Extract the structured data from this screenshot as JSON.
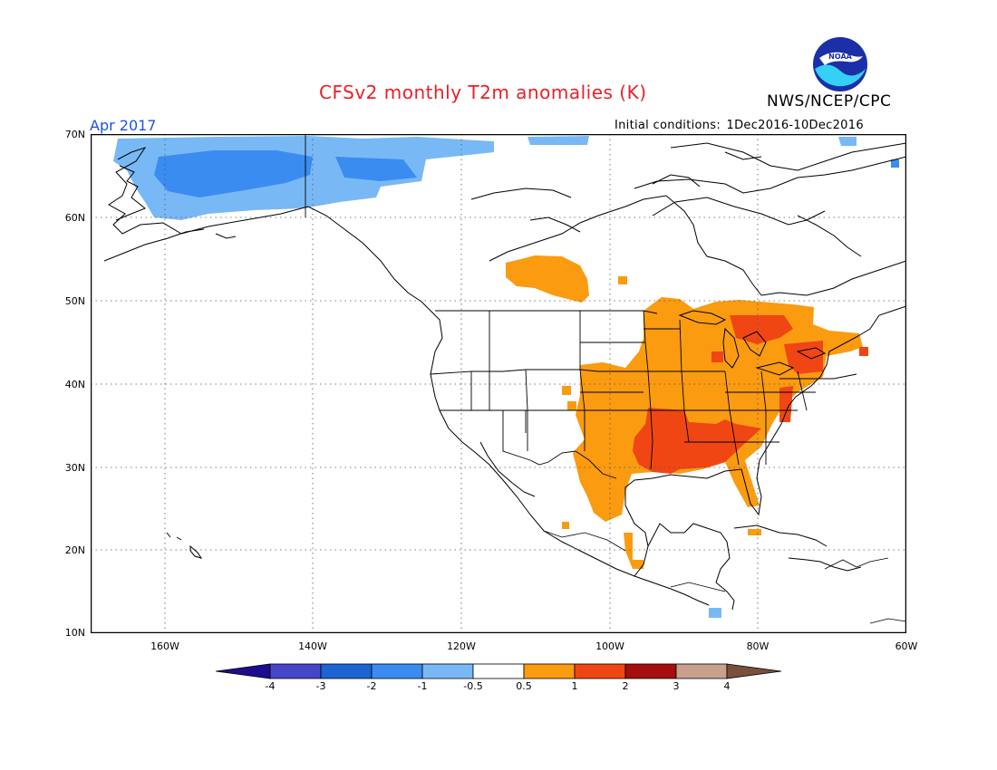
{
  "title": "CFSv2 monthly T2m anomalies (K)",
  "agency": "NWS/NCEP/CPC",
  "logo_text": "NOAA",
  "valid_month": "Apr 2017",
  "initial_conditions": {
    "label": "Initial conditions:",
    "range": "1Dec2016-10Dec2016"
  },
  "latitude_labels": [
    "70N",
    "60N",
    "50N",
    "40N",
    "30N",
    "20N",
    "10N"
  ],
  "longitude_labels": [
    "160W",
    "140W",
    "120W",
    "100W",
    "80W",
    "60W"
  ],
  "map_extent": {
    "lon_min": -170,
    "lon_max": -60,
    "lat_min": 10,
    "lat_max": 70
  },
  "colorbar": {
    "labels": [
      "-4",
      "-3",
      "-2",
      "-1",
      "-0.5",
      "0.5",
      "1",
      "2",
      "3",
      "4"
    ],
    "colors": [
      "#1f0c8c",
      "#4646c8",
      "#1c64d2",
      "#3a8cf0",
      "#78b9f5",
      "#ffffff",
      "#fa9b10",
      "#f04614",
      "#a50f0f",
      "#c8a08c",
      "#78503c"
    ]
  },
  "colors": {
    "title": "#e8202a",
    "month": "#2050e8",
    "anomaly_minus_1": "#78b9f5",
    "anomaly_minus_2": "#3a8cf0",
    "anomaly_plus_0_5": "#fa9b10",
    "anomaly_plus_1": "#f04614"
  }
}
